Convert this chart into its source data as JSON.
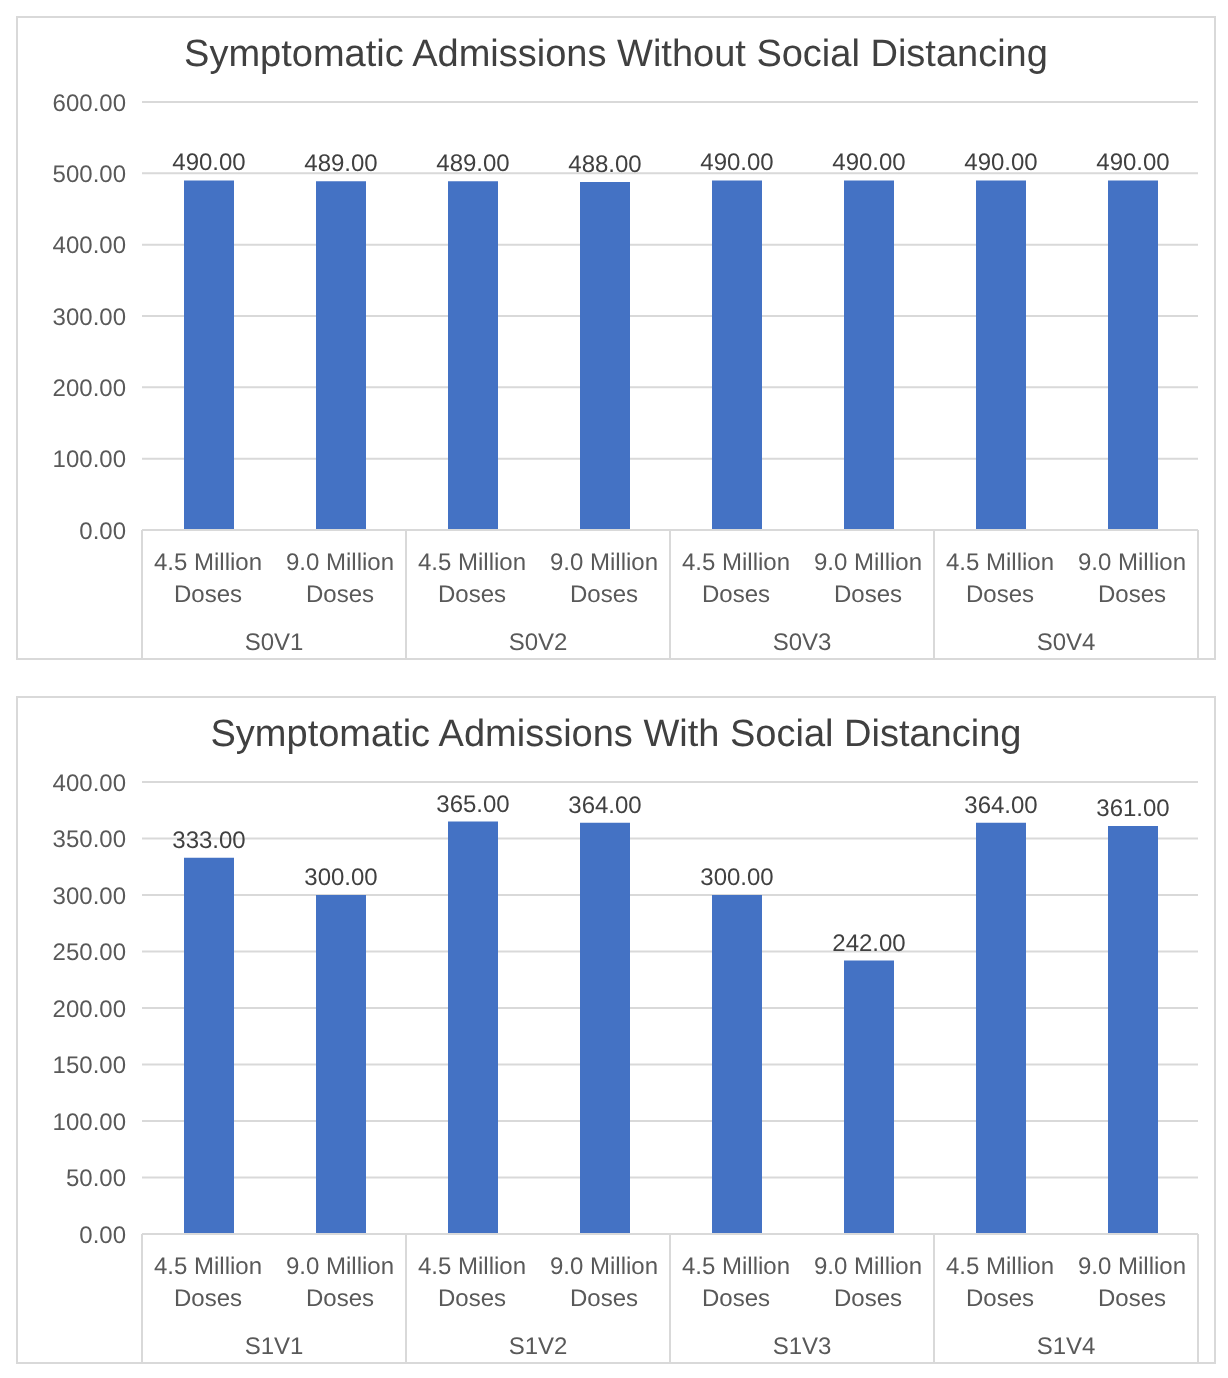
{
  "chart_data": [
    {
      "type": "bar",
      "title": "Symptomatic Admissions Without Social Distancing",
      "categories": [
        "4.5 Million Doses",
        "9.0 Million Doses",
        "4.5 Million Doses",
        "9.0 Million Doses",
        "4.5 Million Doses",
        "9.0 Million Doses",
        "4.5 Million Doses",
        "9.0 Million Doses"
      ],
      "values": [
        490,
        489,
        489,
        488,
        490,
        490,
        490,
        490
      ],
      "color": "#4472c4",
      "ylim": [
        0,
        600
      ],
      "yticks": [
        {
          "value": 0,
          "label": "0.00"
        },
        {
          "value": 100,
          "label": "100.00"
        },
        {
          "value": 200,
          "label": "200.00"
        },
        {
          "value": 300,
          "label": "300.00"
        },
        {
          "value": 400,
          "label": "400.00"
        },
        {
          "value": 500,
          "label": "500.00"
        },
        {
          "value": 600,
          "label": "600.00"
        }
      ],
      "value_labels": [
        "490.00",
        "489.00",
        "489.00",
        "488.00",
        "490.00",
        "490.00",
        "490.00",
        "490.00"
      ],
      "annotations": [
        "S0V1",
        "S0V2",
        "S0V3",
        "S0V4"
      ],
      "grid": "y",
      "legend": false
    },
    {
      "type": "bar",
      "title": "Symptomatic Admissions With Social Distancing",
      "categories": [
        "4.5 Million Doses",
        "9.0 Million Doses",
        "4.5 Million Doses",
        "9.0 Million Doses",
        "4.5 Million Doses",
        "9.0 Million Doses",
        "4.5 Million Doses",
        "9.0 Million Doses"
      ],
      "values": [
        333,
        300,
        365,
        364,
        300,
        242,
        364,
        361
      ],
      "color": "#4472c4",
      "ylim": [
        0,
        400
      ],
      "yticks": [
        {
          "value": 0,
          "label": "0.00"
        },
        {
          "value": 50,
          "label": "50.00"
        },
        {
          "value": 100,
          "label": "100.00"
        },
        {
          "value": 150,
          "label": "150.00"
        },
        {
          "value": 200,
          "label": "200.00"
        },
        {
          "value": 250,
          "label": "250.00"
        },
        {
          "value": 300,
          "label": "300.00"
        },
        {
          "value": 350,
          "label": "350.00"
        },
        {
          "value": 400,
          "label": "400.00"
        }
      ],
      "value_labels": [
        "333.00",
        "300.00",
        "365.00",
        "364.00",
        "300.00",
        "242.00",
        "364.00",
        "361.00"
      ],
      "annotations": [
        "S1V1",
        "S1V2",
        "S1V3",
        "S1V4"
      ],
      "grid": "y",
      "legend": false
    }
  ]
}
